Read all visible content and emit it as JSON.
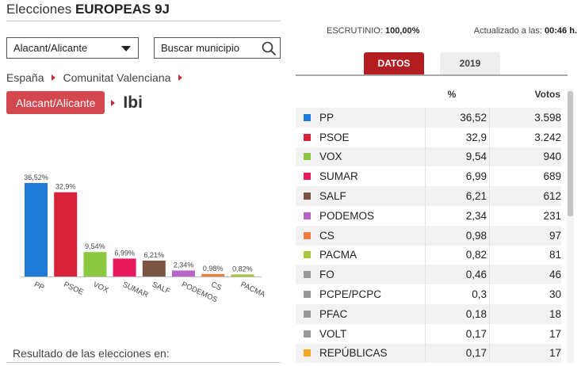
{
  "header": {
    "title_prefix": "Elecciones ",
    "title_bold": "EUROPEAS 9J"
  },
  "region_select": {
    "value": "Alacant/Alicante"
  },
  "search": {
    "placeholder": "Buscar municipio"
  },
  "breadcrumb": {
    "level1": "España",
    "level2": "Comunitat Valenciana"
  },
  "place": {
    "parent": "Alacant/Alicante",
    "name": "Ibi"
  },
  "status": {
    "scrutiny_label": "ESCRUTINIO: ",
    "scrutiny_value": "100,00%",
    "updated_label": "Actualizado a las: ",
    "updated_value": "00:46 h."
  },
  "tabs": {
    "datos": "DATOS",
    "year": "2019"
  },
  "table_headers": {
    "pct": "%",
    "votes": "Votos"
  },
  "parties": [
    {
      "name": "PP",
      "pct": "36,52",
      "votes": "3.598",
      "color": "#1f7ad6"
    },
    {
      "name": "PSOE",
      "pct": "32,9",
      "votes": "3.242",
      "color": "#d7223a"
    },
    {
      "name": "VOX",
      "pct": "9,54",
      "votes": "940",
      "color": "#8bc83f"
    },
    {
      "name": "SUMAR",
      "pct": "6,99",
      "votes": "689",
      "color": "#e8185d"
    },
    {
      "name": "SALF",
      "pct": "6,21",
      "votes": "612",
      "color": "#7a5543"
    },
    {
      "name": "PODEMOS",
      "pct": "2,34",
      "votes": "231",
      "color": "#b666c8"
    },
    {
      "name": "CS",
      "pct": "0,98",
      "votes": "97",
      "color": "#f07b3f"
    },
    {
      "name": "PACMA",
      "pct": "0,82",
      "votes": "81",
      "color": "#a8c63a"
    },
    {
      "name": "FO",
      "pct": "0,46",
      "votes": "46",
      "color": "#999999"
    },
    {
      "name": "PCPE/PCPC",
      "pct": "0,3",
      "votes": "30",
      "color": "#999999"
    },
    {
      "name": "PFAC",
      "pct": "0,18",
      "votes": "18",
      "color": "#999999"
    },
    {
      "name": "VOLT",
      "pct": "0,17",
      "votes": "17",
      "color": "#999999"
    },
    {
      "name": "REPÚBLICAS",
      "pct": "0,17",
      "votes": "17",
      "color": "#f5a623"
    }
  ],
  "chart_data": {
    "type": "bar",
    "categories": [
      "PP",
      "PSOE",
      "VOX",
      "SUMAR",
      "SALF",
      "PODEMOS",
      "CS",
      "PACMA"
    ],
    "values": [
      36.52,
      32.9,
      9.54,
      6.99,
      6.21,
      2.34,
      0.98,
      0.82
    ],
    "value_labels": [
      "36,52%",
      "32,9%",
      "9,54%",
      "6,99%",
      "6,21%",
      "2,34%",
      "0,98%",
      "0,82%"
    ],
    "colors": [
      "#1f7ad6",
      "#d7223a",
      "#8bc83f",
      "#e8185d",
      "#7a5543",
      "#b666c8",
      "#f07b3f",
      "#a8c63a"
    ],
    "ylim": [
      0,
      36.52
    ],
    "grid": false
  },
  "footer": {
    "results_caption": "Resultado de las elecciones en:"
  }
}
